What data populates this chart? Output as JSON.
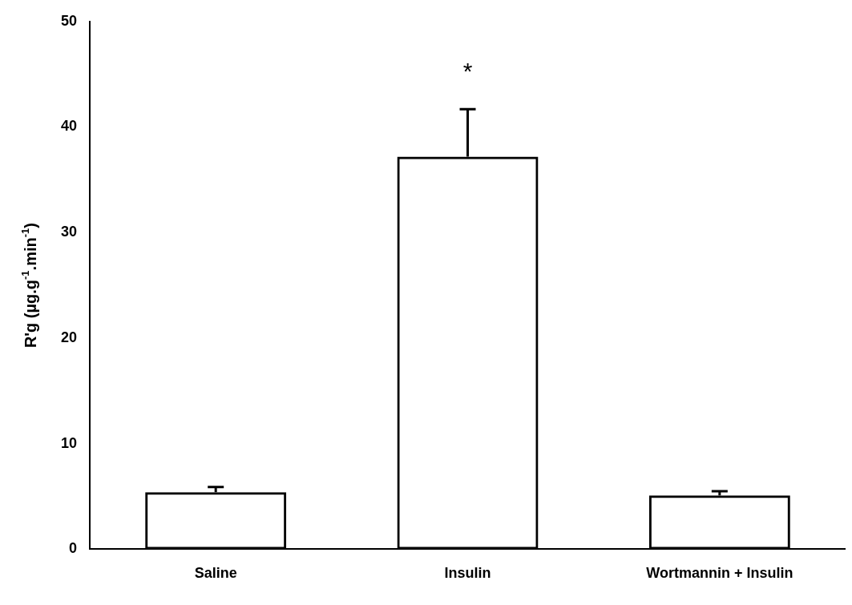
{
  "chart_data": {
    "type": "bar",
    "categories": [
      "Saline",
      "Insulin",
      "Wortmannin + Insulin"
    ],
    "values": [
      5.4,
      37.2,
      5.1
    ],
    "errors": [
      [
        5.4,
        5.9
      ],
      [
        37.2,
        41.7
      ],
      [
        5.1,
        5.5
      ]
    ],
    "color": "#000000",
    "ylabel": "R'g (µg.g$^{-1}$.min$^{-1}$)",
    "ylim": [
      0,
      50
    ],
    "yticks": [
      0,
      10,
      20,
      30,
      40,
      50
    ],
    "grid": false,
    "legend": false,
    "annotations": [
      "*"
    ]
  }
}
